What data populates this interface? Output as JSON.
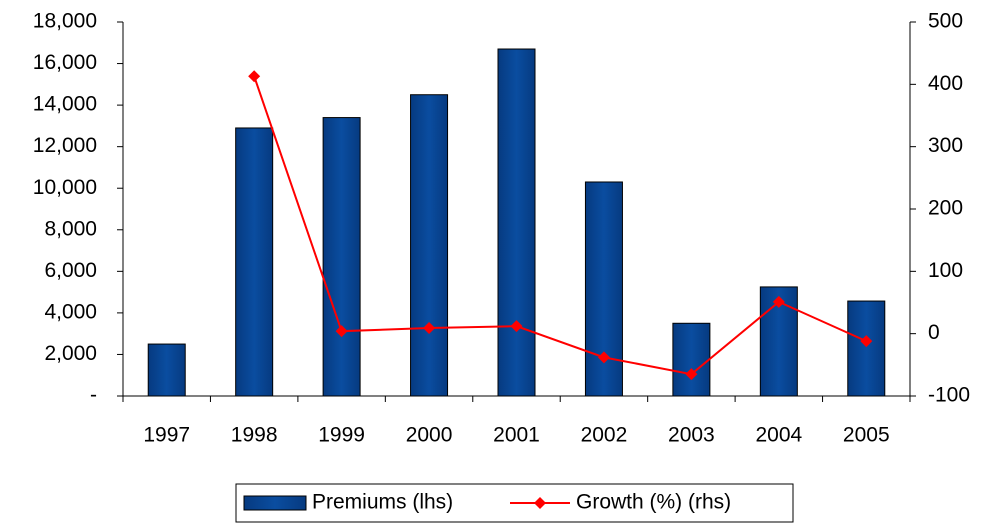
{
  "chart_data": {
    "type": "bar",
    "categories": [
      "1997",
      "1998",
      "1999",
      "2000",
      "2001",
      "2002",
      "2003",
      "2004",
      "2005"
    ],
    "series": [
      {
        "name": "Premiums (lhs)",
        "type": "bar",
        "color": "#0a4da0",
        "values": [
          2500,
          12900,
          13400,
          14500,
          16700,
          10300,
          3500,
          5250,
          4570
        ]
      },
      {
        "name": "Growth (%) (rhs)",
        "type": "line",
        "axis": "y2",
        "color": "#ff0000",
        "values": [
          null,
          413,
          4,
          9,
          12,
          -38,
          -65,
          51,
          -12
        ]
      }
    ],
    "ylim": [
      0,
      18000
    ],
    "yticks": [
      {
        "value": 0,
        "label": "-"
      },
      {
        "value": 2000,
        "label": "2,000"
      },
      {
        "value": 4000,
        "label": "4,000"
      },
      {
        "value": 6000,
        "label": "6,000"
      },
      {
        "value": 8000,
        "label": "8,000"
      },
      {
        "value": 10000,
        "label": "10,000"
      },
      {
        "value": 12000,
        "label": "12,000"
      },
      {
        "value": 14000,
        "label": "14,000"
      },
      {
        "value": 16000,
        "label": "16,000"
      },
      {
        "value": 18000,
        "label": "18,000"
      }
    ],
    "y2lim": [
      -100,
      500
    ],
    "y2ticks": [
      -100,
      0,
      100,
      200,
      300,
      400,
      500
    ],
    "legend": "bottom"
  }
}
